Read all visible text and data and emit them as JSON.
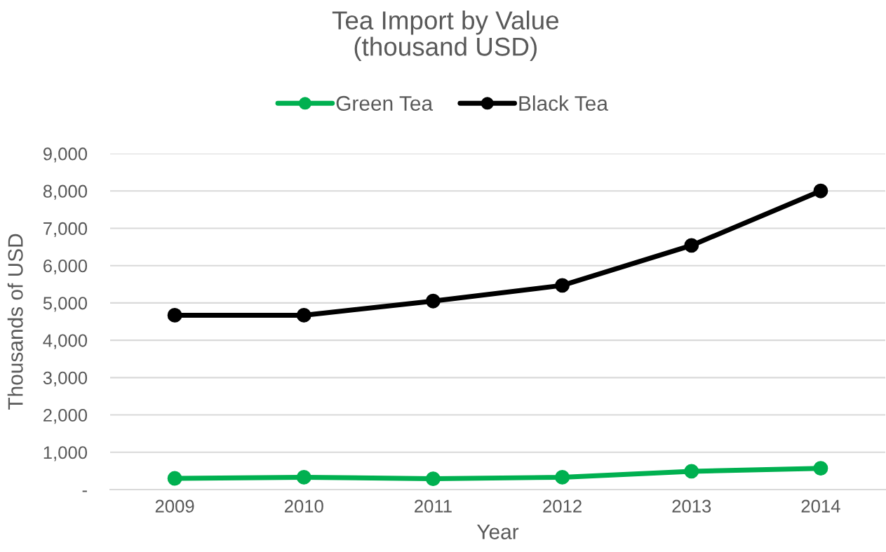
{
  "chart_data": {
    "type": "line",
    "title": "Tea Import by Value\n(thousand USD)",
    "xlabel": "Year",
    "ylabel": "Thousands of USD",
    "categories": [
      "2009",
      "2010",
      "2011",
      "2012",
      "2013",
      "2014"
    ],
    "series": [
      {
        "name": "Green Tea",
        "color": "#00b050",
        "values": [
          300,
          330,
          290,
          330,
          490,
          570
        ]
      },
      {
        "name": "Black Tea",
        "color": "#000000",
        "values": [
          4670,
          4670,
          5050,
          5470,
          6540,
          8000
        ]
      }
    ],
    "ylim": [
      0,
      9000
    ],
    "yticks": [
      {
        "value": 0,
        "label": "-"
      },
      {
        "value": 1000,
        "label": "1,000"
      },
      {
        "value": 2000,
        "label": "2,000"
      },
      {
        "value": 3000,
        "label": "3,000"
      },
      {
        "value": 4000,
        "label": "4,000"
      },
      {
        "value": 5000,
        "label": "5,000"
      },
      {
        "value": 6000,
        "label": "6,000"
      },
      {
        "value": 7000,
        "label": "7,000"
      },
      {
        "value": 8000,
        "label": "8,000"
      },
      {
        "value": 9000,
        "label": "9,000"
      }
    ],
    "grid": "y",
    "legend": "top",
    "marker": "circle",
    "line_style": "solid"
  }
}
